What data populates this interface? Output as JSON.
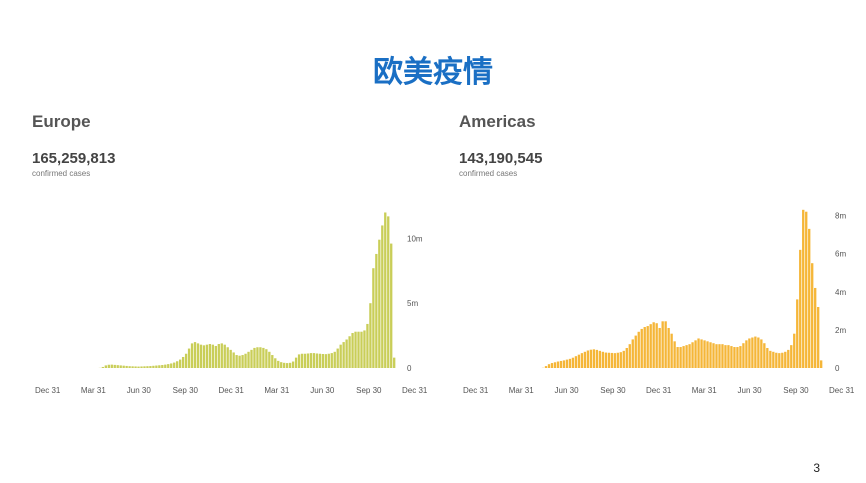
{
  "slide": {
    "title": "欧美疫情",
    "page_number": "3"
  },
  "chart_data": [
    {
      "type": "bar",
      "region": "Europe",
      "total": "165,259,813",
      "total_caption": "confirmed cases",
      "color": "#c9ce58",
      "ylim": [
        0,
        12500000
      ],
      "y_ticks": [
        {
          "value": 0,
          "label": "0"
        },
        {
          "value": 5000000,
          "label": "5m"
        },
        {
          "value": 10000000,
          "label": "10m"
        }
      ],
      "x_ticks": [
        "Dec 31",
        "Mar 31",
        "Jun 30",
        "Sep 30",
        "Dec 31",
        "Mar 31",
        "Jun 30",
        "Sep 30",
        "Dec 31"
      ],
      "series": [
        {
          "values": [
            0,
            0,
            0,
            0,
            0,
            0,
            0,
            0,
            0,
            0,
            10000,
            80000,
            200000,
            250000,
            260000,
            240000,
            220000,
            200000,
            180000,
            160000,
            140000,
            130000,
            120000,
            110000,
            120000,
            130000,
            140000,
            150000,
            170000,
            190000,
            210000,
            230000,
            260000,
            300000,
            350000,
            420000,
            520000,
            650000,
            850000,
            1100000,
            1500000,
            1900000,
            2000000,
            1900000,
            1800000,
            1750000,
            1800000,
            1850000,
            1800000,
            1700000,
            1850000,
            1900000,
            1800000,
            1600000,
            1400000,
            1200000,
            1000000,
            950000,
            1000000,
            1100000,
            1250000,
            1400000,
            1550000,
            1600000,
            1600000,
            1550000,
            1450000,
            1250000,
            1000000,
            750000,
            550000,
            450000,
            400000,
            380000,
            400000,
            500000,
            800000,
            1050000,
            1100000,
            1100000,
            1120000,
            1150000,
            1150000,
            1120000,
            1100000,
            1080000,
            1070000,
            1100000,
            1150000,
            1250000,
            1500000,
            1800000,
            2000000,
            2200000,
            2450000,
            2700000,
            2800000,
            2800000,
            2800000,
            2900000,
            3400000,
            5000000,
            7700000,
            8800000,
            9900000,
            11000000,
            12000000,
            11700000,
            9600000,
            800000
          ]
        }
      ]
    },
    {
      "type": "bar",
      "region": "Americas",
      "total": "143,190,545",
      "total_caption": "confirmed cases",
      "color": "#f5b638",
      "ylim": [
        0,
        8500000
      ],
      "y_ticks": [
        {
          "value": 0,
          "label": "0"
        },
        {
          "value": 2000000,
          "label": "2m"
        },
        {
          "value": 4000000,
          "label": "4m"
        },
        {
          "value": 6000000,
          "label": "6m"
        },
        {
          "value": 8000000,
          "label": "8m"
        }
      ],
      "x_ticks": [
        "Dec 31",
        "Mar 31",
        "Jun 30",
        "Sep 30",
        "Dec 31",
        "Mar 31",
        "Jun 30",
        "Sep 30",
        "Dec 31"
      ],
      "series": [
        {
          "values": [
            0,
            0,
            0,
            0,
            0,
            0,
            0,
            0,
            0,
            0,
            0,
            0,
            0,
            0,
            0,
            10000,
            100000,
            200000,
            260000,
            300000,
            340000,
            370000,
            400000,
            440000,
            480000,
            540000,
            620000,
            700000,
            780000,
            850000,
            920000,
            960000,
            980000,
            950000,
            900000,
            850000,
            810000,
            800000,
            790000,
            780000,
            800000,
            830000,
            900000,
            1050000,
            1250000,
            1500000,
            1700000,
            1900000,
            2050000,
            2150000,
            2200000,
            2300000,
            2400000,
            2350000,
            2100000,
            2450000,
            2450000,
            2100000,
            1800000,
            1400000,
            1100000,
            1100000,
            1150000,
            1200000,
            1250000,
            1350000,
            1450000,
            1550000,
            1500000,
            1450000,
            1400000,
            1350000,
            1300000,
            1250000,
            1250000,
            1250000,
            1200000,
            1200000,
            1150000,
            1100000,
            1100000,
            1150000,
            1300000,
            1450000,
            1550000,
            1600000,
            1650000,
            1600000,
            1500000,
            1300000,
            1050000,
            900000,
            850000,
            800000,
            780000,
            800000,
            850000,
            950000,
            1200000,
            1800000,
            3600000,
            6200000,
            8300000,
            8200000,
            7300000,
            5500000,
            4200000,
            3200000,
            400000
          ]
        }
      ]
    }
  ]
}
